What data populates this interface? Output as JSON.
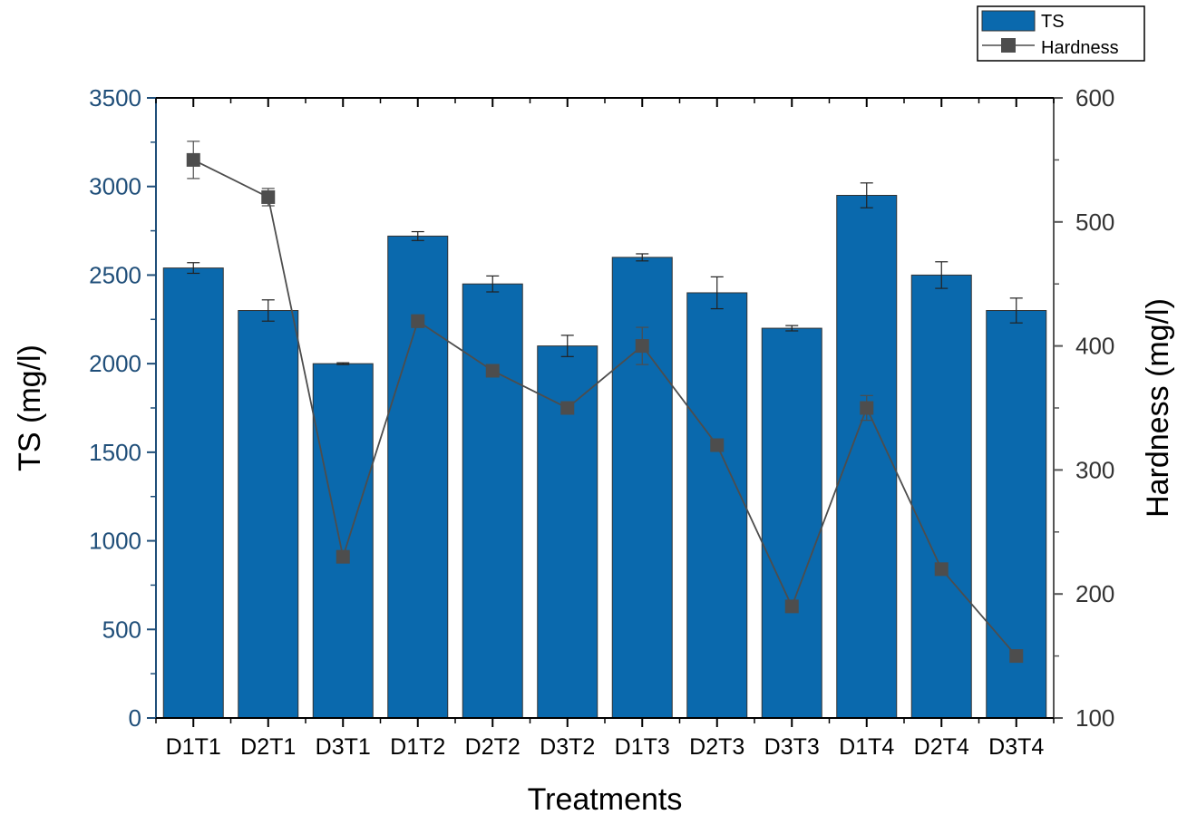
{
  "chart_data": {
    "type": "bar",
    "xlabel": "Treatments",
    "ylabel": "TS (mg/l)",
    "ylabel_right": "Hardness (mg/l)",
    "categories": [
      "D1T1",
      "D2T1",
      "D3T1",
      "D1T2",
      "D2T2",
      "D3T2",
      "D1T3",
      "D2T3",
      "D3T3",
      "D1T4",
      "D2T4",
      "D3T4"
    ],
    "ylim": [
      0,
      3500
    ],
    "ylim_right": [
      100,
      600
    ],
    "yticks": [
      0,
      500,
      1000,
      1500,
      2000,
      2500,
      3000,
      3500
    ],
    "yticks_right": [
      100,
      200,
      300,
      400,
      500,
      600
    ],
    "legend_position": "top-right",
    "series": [
      {
        "name": "TS",
        "type": "bar",
        "axis": "left",
        "color": "#0a69ad",
        "values": [
          2540,
          2300,
          2000,
          2720,
          2450,
          2100,
          2600,
          2400,
          2200,
          2950,
          2500,
          2300
        ],
        "errors": [
          30,
          60,
          5,
          25,
          45,
          60,
          20,
          90,
          15,
          70,
          75,
          70
        ]
      },
      {
        "name": "Hardness",
        "type": "line",
        "marker": "square",
        "axis": "right",
        "color": "#4d4d4d",
        "values": [
          550,
          520,
          230,
          420,
          380,
          350,
          400,
          320,
          190,
          350,
          220,
          150
        ],
        "errors": [
          15,
          7,
          3,
          5,
          3,
          3,
          15,
          3,
          3,
          10,
          3,
          3
        ]
      }
    ]
  }
}
